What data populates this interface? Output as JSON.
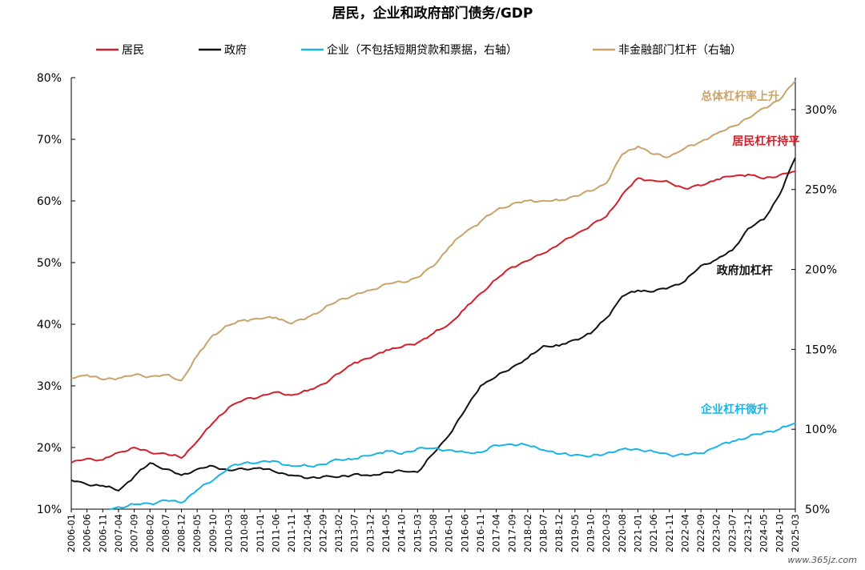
{
  "colors": {
    "household": "#d2202b",
    "government": "#111111",
    "corporate": "#19b4e6",
    "nonfinancial": "#c9a36a",
    "axis": "#000000"
  },
  "watermark": "www.365jz.com",
  "chart_data": {
    "type": "line",
    "title": "居民，企业和政府部门债务/GDP",
    "legend_position": "top",
    "grid": false,
    "x_ticks": [
      "2006-01",
      "2006-06",
      "2006-11",
      "2007-04",
      "2007-09",
      "2008-02",
      "2008-07",
      "2008-12",
      "2009-05",
      "2009-10",
      "2010-03",
      "2010-08",
      "2011-01",
      "2011-06",
      "2011-11",
      "2012-04",
      "2012-09",
      "2013-02",
      "2013-07",
      "2013-12",
      "2014-05",
      "2014-10",
      "2015-03",
      "2015-08",
      "2016-01",
      "2016-06",
      "2016-11",
      "2017-04",
      "2017-09",
      "2018-02",
      "2018-07",
      "2018-12",
      "2019-05",
      "2019-10",
      "2020-03",
      "2020-08",
      "2021-01",
      "2021-06",
      "2021-11",
      "2022-04",
      "2022-09",
      "2023-02",
      "2023-07",
      "2023-12",
      "2024-05",
      "2024-10",
      "2025-03"
    ],
    "y_left": {
      "min": 10,
      "max": 80,
      "ticks": [
        "10%",
        "20%",
        "30%",
        "40%",
        "50%",
        "60%",
        "70%",
        "80%"
      ]
    },
    "y_right": {
      "min": 50,
      "max": 320,
      "ticks": [
        "50%",
        "100%",
        "150%",
        "200%",
        "250%",
        "300%"
      ]
    },
    "series": [
      {
        "name": "居民",
        "axis": "left",
        "color_key": "household",
        "points": [
          [
            "2006-01",
            17.5
          ],
          [
            "2006-06",
            18.2
          ],
          [
            "2006-11",
            18.0
          ],
          [
            "2007-04",
            19.2
          ],
          [
            "2007-09",
            20.0
          ],
          [
            "2008-02",
            19.2
          ],
          [
            "2008-07",
            19.0
          ],
          [
            "2008-12",
            18.3
          ],
          [
            "2009-05",
            21.0
          ],
          [
            "2009-10",
            24.0
          ],
          [
            "2010-03",
            26.5
          ],
          [
            "2010-08",
            27.8
          ],
          [
            "2011-01",
            28.3
          ],
          [
            "2011-06",
            29.0
          ],
          [
            "2011-11",
            28.5
          ],
          [
            "2012-04",
            29.2
          ],
          [
            "2012-09",
            30.3
          ],
          [
            "2013-02",
            32.0
          ],
          [
            "2013-07",
            33.8
          ],
          [
            "2013-12",
            34.5
          ],
          [
            "2014-05",
            35.8
          ],
          [
            "2014-10",
            36.3
          ],
          [
            "2015-03",
            37.0
          ],
          [
            "2015-08",
            38.5
          ],
          [
            "2016-01",
            40.0
          ],
          [
            "2016-06",
            42.5
          ],
          [
            "2016-11",
            45.0
          ],
          [
            "2017-04",
            47.3
          ],
          [
            "2017-09",
            49.3
          ],
          [
            "2018-02",
            50.3
          ],
          [
            "2018-07",
            51.5
          ],
          [
            "2018-12",
            53.0
          ],
          [
            "2019-05",
            54.5
          ],
          [
            "2019-10",
            56.0
          ],
          [
            "2020-03",
            57.5
          ],
          [
            "2020-08",
            61.0
          ],
          [
            "2021-01",
            63.7
          ],
          [
            "2021-06",
            63.3
          ],
          [
            "2021-11",
            63.0
          ],
          [
            "2022-04",
            62.0
          ],
          [
            "2022-09",
            62.5
          ],
          [
            "2023-02",
            63.5
          ],
          [
            "2023-07",
            64.0
          ],
          [
            "2023-12",
            64.3
          ],
          [
            "2024-05",
            63.6
          ],
          [
            "2024-10",
            64.2
          ],
          [
            "2025-03",
            64.8
          ]
        ]
      },
      {
        "name": "政府",
        "axis": "left",
        "color_key": "government",
        "points": [
          [
            "2006-01",
            14.7
          ],
          [
            "2006-06",
            14.0
          ],
          [
            "2006-11",
            13.8
          ],
          [
            "2007-04",
            13.0
          ],
          [
            "2007-09",
            15.3
          ],
          [
            "2008-02",
            17.5
          ],
          [
            "2008-07",
            16.5
          ],
          [
            "2008-12",
            15.5
          ],
          [
            "2009-05",
            16.5
          ],
          [
            "2009-10",
            17.0
          ],
          [
            "2010-03",
            16.3
          ],
          [
            "2010-08",
            16.5
          ],
          [
            "2011-01",
            16.7
          ],
          [
            "2011-06",
            16.0
          ],
          [
            "2011-11",
            15.5
          ],
          [
            "2012-04",
            15.0
          ],
          [
            "2012-09",
            15.3
          ],
          [
            "2013-02",
            15.2
          ],
          [
            "2013-07",
            15.7
          ],
          [
            "2013-12",
            15.4
          ],
          [
            "2014-05",
            16.0
          ],
          [
            "2014-10",
            16.2
          ],
          [
            "2015-03",
            16.0
          ],
          [
            "2015-08",
            19.0
          ],
          [
            "2016-01",
            22.0
          ],
          [
            "2016-06",
            26.0
          ],
          [
            "2016-11",
            30.0
          ],
          [
            "2017-04",
            31.5
          ],
          [
            "2017-09",
            33.0
          ],
          [
            "2018-02",
            34.5
          ],
          [
            "2018-07",
            36.5
          ],
          [
            "2018-12",
            36.5
          ],
          [
            "2019-05",
            37.5
          ],
          [
            "2019-10",
            38.5
          ],
          [
            "2020-03",
            41.0
          ],
          [
            "2020-08",
            44.5
          ],
          [
            "2021-01",
            45.5
          ],
          [
            "2021-06",
            45.3
          ],
          [
            "2021-11",
            46.0
          ],
          [
            "2022-04",
            47.0
          ],
          [
            "2022-09",
            49.5
          ],
          [
            "2023-02",
            50.5
          ],
          [
            "2023-07",
            52.0
          ],
          [
            "2023-12",
            55.5
          ],
          [
            "2024-05",
            57.0
          ],
          [
            "2024-10",
            61.0
          ],
          [
            "2025-03",
            67.0
          ]
        ]
      },
      {
        "name": "企业（不包括短期贷款和票据，右轴）",
        "axis": "right",
        "color_key": "corporate",
        "points": [
          [
            "2007-01",
            50.0
          ],
          [
            "2007-09",
            53.0
          ],
          [
            "2008-02",
            53.5
          ],
          [
            "2008-07",
            55.5
          ],
          [
            "2008-12",
            54.0
          ],
          [
            "2009-05",
            62.0
          ],
          [
            "2009-10",
            68.0
          ],
          [
            "2010-03",
            76.0
          ],
          [
            "2010-08",
            79.0
          ],
          [
            "2011-01",
            79.5
          ],
          [
            "2011-06",
            80.0
          ],
          [
            "2011-11",
            77.0
          ],
          [
            "2012-04",
            77.0
          ],
          [
            "2012-09",
            78.0
          ],
          [
            "2013-02",
            81.0
          ],
          [
            "2013-07",
            81.5
          ],
          [
            "2013-12",
            83.5
          ],
          [
            "2014-05",
            86.5
          ],
          [
            "2014-10",
            84.5
          ],
          [
            "2015-03",
            88.0
          ],
          [
            "2015-08",
            88.0
          ],
          [
            "2016-01",
            87.0
          ],
          [
            "2016-06",
            85.5
          ],
          [
            "2016-11",
            85.5
          ],
          [
            "2017-04",
            90.0
          ],
          [
            "2017-09",
            90.5
          ],
          [
            "2018-02",
            90.0
          ],
          [
            "2018-07",
            87.0
          ],
          [
            "2018-12",
            84.5
          ],
          [
            "2019-05",
            84.0
          ],
          [
            "2019-10",
            83.0
          ],
          [
            "2020-03",
            85.0
          ],
          [
            "2020-08",
            87.5
          ],
          [
            "2021-01",
            87.5
          ],
          [
            "2021-06",
            86.0
          ],
          [
            "2021-11",
            84.0
          ],
          [
            "2022-04",
            84.0
          ],
          [
            "2022-09",
            85.0
          ],
          [
            "2023-02",
            89.0
          ],
          [
            "2023-07",
            92.5
          ],
          [
            "2023-12",
            95.0
          ],
          [
            "2024-05",
            98.0
          ],
          [
            "2024-10",
            100.0
          ],
          [
            "2025-03",
            104.0
          ]
        ]
      },
      {
        "name": "非金融部门杠杆（右轴）",
        "axis": "right",
        "color_key": "nonfinancial",
        "points": [
          [
            "2006-01",
            132.0
          ],
          [
            "2006-06",
            134.0
          ],
          [
            "2006-11",
            131.0
          ],
          [
            "2007-04",
            132.0
          ],
          [
            "2007-09",
            134.0
          ],
          [
            "2008-02",
            133.0
          ],
          [
            "2008-07",
            134.0
          ],
          [
            "2008-12",
            130.5
          ],
          [
            "2009-05",
            146.0
          ],
          [
            "2009-10",
            159.0
          ],
          [
            "2010-03",
            165.0
          ],
          [
            "2010-08",
            168.5
          ],
          [
            "2011-01",
            169.0
          ],
          [
            "2011-06",
            170.0
          ],
          [
            "2011-11",
            166.0
          ],
          [
            "2012-04",
            170.0
          ],
          [
            "2012-09",
            175.0
          ],
          [
            "2013-02",
            181.0
          ],
          [
            "2013-07",
            184.0
          ],
          [
            "2013-12",
            187.0
          ],
          [
            "2014-05",
            191.0
          ],
          [
            "2014-10",
            192.0
          ],
          [
            "2015-03",
            195.0
          ],
          [
            "2015-08",
            202.0
          ],
          [
            "2016-01",
            214.0
          ],
          [
            "2016-06",
            223.0
          ],
          [
            "2016-11",
            230.0
          ],
          [
            "2017-04",
            237.0
          ],
          [
            "2017-09",
            241.0
          ],
          [
            "2018-02",
            243.0
          ],
          [
            "2018-07",
            243.0
          ],
          [
            "2018-12",
            243.0
          ],
          [
            "2019-05",
            246.0
          ],
          [
            "2019-10",
            249.0
          ],
          [
            "2020-03",
            254.0
          ],
          [
            "2020-08",
            272.0
          ],
          [
            "2021-01",
            277.0
          ],
          [
            "2021-06",
            272.0
          ],
          [
            "2021-11",
            270.5
          ],
          [
            "2022-04",
            276.0
          ],
          [
            "2022-09",
            280.0
          ],
          [
            "2023-02",
            285.0
          ],
          [
            "2023-07",
            289.5
          ],
          [
            "2023-12",
            294.5
          ],
          [
            "2024-05",
            301.0
          ],
          [
            "2024-10",
            306.0
          ],
          [
            "2025-03",
            318.0
          ]
        ]
      }
    ],
    "annotations": [
      {
        "text": "总体杠杆率上升",
        "color_key": "nonfinancial",
        "at": [
          "2022-09",
          306
        ]
      },
      {
        "text": "居民杠杆持平",
        "color_key": "household",
        "at": [
          "2023-07",
          278
        ]
      },
      {
        "text": "政府加杠杆",
        "color_key": "government",
        "at": [
          "2023-02",
          197
        ]
      },
      {
        "text": "企业杠杆微升",
        "color_key": "corporate",
        "at": [
          "2022-09",
          110
        ]
      }
    ]
  }
}
